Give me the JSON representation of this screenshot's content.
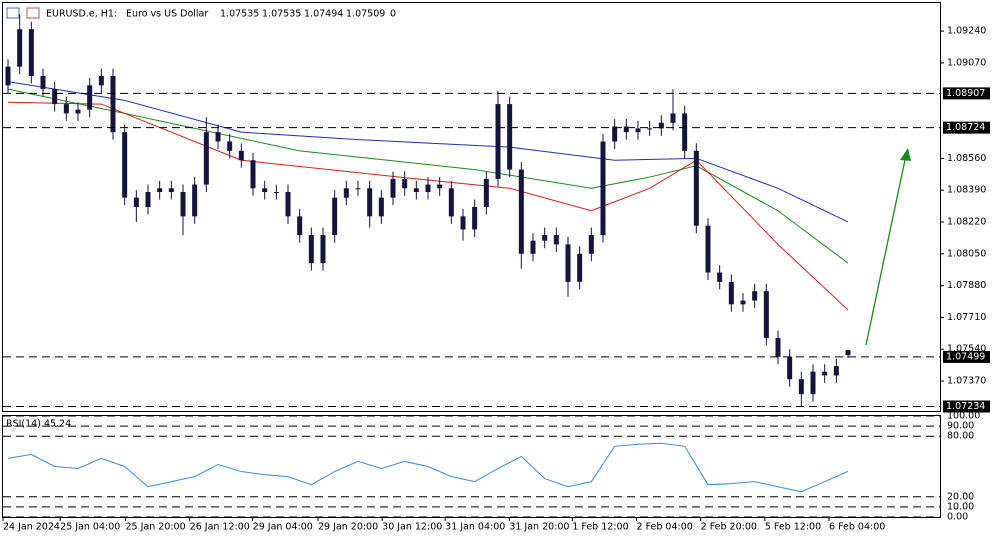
{
  "chart_data": [
    {
      "type": "candlestick",
      "symbol": "EURUSD.e, H1:",
      "description": "Euro vs US Dollar",
      "spread": 0,
      "color": "#14143c",
      "open": [
        1.0895,
        1.0905,
        1.0925,
        1.09,
        1.0893,
        1.0885,
        1.088,
        1.0882,
        1.0895,
        1.09,
        1.087,
        1.0835,
        1.083,
        1.0838,
        1.084,
        1.0838,
        1.0825,
        1.0842,
        1.087,
        1.0865,
        1.086,
        1.0855,
        1.084,
        1.0838,
        1.0838,
        1.0825,
        1.0815,
        1.08,
        1.0815,
        1.0835,
        1.084,
        1.084,
        1.0825,
        1.0835,
        1.0845,
        1.084,
        1.0838,
        1.0842,
        1.084,
        1.0825,
        1.0818,
        1.083,
        1.0845,
        1.0885,
        1.085,
        1.0805,
        1.0812,
        1.0815,
        1.081,
        1.079,
        1.0805,
        1.0815,
        1.0865,
        1.0873,
        1.087,
        1.0872,
        1.0872,
        1.0875,
        1.088,
        1.086,
        1.082,
        1.0795,
        1.079,
        1.0778,
        1.078,
        1.0785,
        1.076,
        1.075,
        1.0738,
        1.073,
        1.0742,
        1.074,
        1.07535
      ],
      "high": [
        1.0909,
        1.0933,
        1.0929,
        1.0904,
        1.0897,
        1.0889,
        1.0886,
        1.0899,
        1.0904,
        1.0904,
        1.0874,
        1.0839,
        1.0842,
        1.0844,
        1.0844,
        1.0842,
        1.0846,
        1.0878,
        1.0874,
        1.0869,
        1.0864,
        1.0859,
        1.0844,
        1.0842,
        1.0842,
        1.0829,
        1.0819,
        1.0819,
        1.0839,
        1.0844,
        1.0844,
        1.0844,
        1.0839,
        1.0849,
        1.0849,
        1.0844,
        1.0846,
        1.0846,
        1.0844,
        1.0829,
        1.0834,
        1.0849,
        1.0892,
        1.0889,
        1.0854,
        1.0816,
        1.0819,
        1.0819,
        1.0814,
        1.0809,
        1.0819,
        1.0869,
        1.0877,
        1.0877,
        1.0876,
        1.0876,
        1.0879,
        1.0893,
        1.0884,
        1.0864,
        1.0824,
        1.0799,
        1.0794,
        1.0784,
        1.0789,
        1.0789,
        1.0764,
        1.0754,
        1.0742,
        1.0746,
        1.0746,
        1.0749,
        1.07535
      ],
      "low": [
        1.0891,
        1.0901,
        1.0896,
        1.0889,
        1.0881,
        1.0876,
        1.0876,
        1.0878,
        1.0891,
        1.0866,
        1.0831,
        1.0822,
        1.0826,
        1.0834,
        1.0834,
        1.0815,
        1.0821,
        1.0838,
        1.0861,
        1.0856,
        1.0851,
        1.0836,
        1.0834,
        1.0834,
        1.0821,
        1.0811,
        1.0796,
        1.0796,
        1.0811,
        1.0831,
        1.0836,
        1.0819,
        1.0821,
        1.0831,
        1.0836,
        1.0834,
        1.0834,
        1.0836,
        1.0821,
        1.0812,
        1.0814,
        1.0826,
        1.0841,
        1.0846,
        1.0797,
        1.0801,
        1.0808,
        1.0806,
        1.0782,
        1.0786,
        1.0801,
        1.0811,
        1.0861,
        1.0866,
        1.0866,
        1.0868,
        1.0868,
        1.0871,
        1.0856,
        1.0816,
        1.0791,
        1.0786,
        1.0774,
        1.0774,
        1.0776,
        1.0756,
        1.0746,
        1.0734,
        1.07234,
        1.0726,
        1.0736,
        1.0736,
        1.07494
      ],
      "close": [
        1.0905,
        1.0925,
        1.09,
        1.0893,
        1.0885,
        1.088,
        1.0882,
        1.0895,
        1.09,
        1.087,
        1.0835,
        1.083,
        1.0838,
        1.084,
        1.0838,
        1.0825,
        1.0842,
        1.087,
        1.0865,
        1.086,
        1.0855,
        1.084,
        1.0838,
        1.0838,
        1.0825,
        1.0815,
        1.08,
        1.0815,
        1.0835,
        1.084,
        1.084,
        1.0825,
        1.0835,
        1.0845,
        1.084,
        1.0838,
        1.0842,
        1.084,
        1.0825,
        1.0818,
        1.083,
        1.0845,
        1.0885,
        1.085,
        1.0805,
        1.0812,
        1.0815,
        1.081,
        1.079,
        1.0805,
        1.0815,
        1.0865,
        1.0873,
        1.087,
        1.0872,
        1.0872,
        1.0875,
        1.088,
        1.086,
        1.082,
        1.0795,
        1.079,
        1.0778,
        1.078,
        1.0785,
        1.076,
        1.075,
        1.0738,
        1.073,
        1.0742,
        1.074,
        1.0745,
        1.07509
      ],
      "series": [
        {
          "color": "#1f2fb4",
          "x": [
            0,
            10,
            20,
            30,
            43,
            52,
            59,
            66,
            72
          ],
          "values": [
            1.0897,
            1.0887,
            1.087,
            1.0866,
            1.0862,
            1.0855,
            1.0856,
            1.084,
            1.0822
          ]
        },
        {
          "color": "#1a8a1a",
          "x": [
            0,
            10,
            25,
            40,
            50,
            55,
            59,
            66,
            72
          ],
          "values": [
            1.0893,
            1.088,
            1.086,
            1.085,
            1.084,
            1.0846,
            1.0852,
            1.0828,
            1.08
          ]
        },
        {
          "color": "#d81e1e",
          "x": [
            0,
            8,
            20,
            35,
            43,
            50,
            55,
            59,
            66,
            72
          ],
          "values": [
            1.0886,
            1.0885,
            1.0855,
            1.0845,
            1.084,
            1.0828,
            1.084,
            1.0855,
            1.081,
            1.0775
          ]
        }
      ],
      "levels": [
        1.08907,
        1.08724,
        1.07499,
        1.07234
      ],
      "ylim": [
        1.0721,
        1.0939
      ],
      "yticks": [
        {
          "value": 1.0924,
          "label": "1.09240"
        },
        {
          "value": 1.0907,
          "label": "1.09070"
        },
        {
          "value": 1.0856,
          "label": "1.08560"
        },
        {
          "value": 1.0839,
          "label": "1.08390"
        },
        {
          "value": 1.0822,
          "label": "1.08220"
        },
        {
          "value": 1.0805,
          "label": "1.08050"
        },
        {
          "value": 1.0788,
          "label": "1.07880"
        },
        {
          "value": 1.0771,
          "label": "1.07710"
        },
        {
          "value": 1.0754,
          "label": "1.07540"
        },
        {
          "value": 1.0737,
          "label": "1.07370"
        }
      ],
      "xticks": [
        {
          "value": 0,
          "label": "24 Jan 2024"
        },
        {
          "value": 4.9,
          "label": "25 Jan 04:00"
        },
        {
          "value": 10.5,
          "label": "25 Jan 20:00"
        },
        {
          "value": 16,
          "label": "26 Jan 12:00"
        },
        {
          "value": 21.4,
          "label": "29 Jan 04:00"
        },
        {
          "value": 27,
          "label": "29 Jan 20:00"
        },
        {
          "value": 32.5,
          "label": "30 Jan 12:00"
        },
        {
          "value": 37.9,
          "label": "31 Jan 04:00"
        },
        {
          "value": 43.4,
          "label": "31 Jan 20:00"
        },
        {
          "value": 48.8,
          "label": "1 Feb 12:00"
        },
        {
          "value": 54.3,
          "label": "2 Feb 04:00"
        },
        {
          "value": 59.8,
          "label": "2 Feb 20:00"
        },
        {
          "value": 65.3,
          "label": "5 Feb 12:00"
        },
        {
          "value": 70.8,
          "label": "6 Feb 04:00"
        }
      ]
    },
    {
      "type": "line",
      "title": "RSI(14) 45.24",
      "color": "#3a8ed4",
      "x": [
        0,
        2,
        4,
        6,
        8,
        10,
        12,
        14,
        16,
        18,
        20,
        22,
        24,
        26,
        28,
        30,
        32,
        34,
        36,
        38,
        40,
        42,
        44,
        46,
        48,
        50,
        52,
        54,
        56,
        58,
        60,
        62,
        64,
        66,
        68,
        70,
        72
      ],
      "values": [
        58,
        62,
        50,
        48,
        58,
        50,
        30,
        35,
        40,
        52,
        45,
        42,
        40,
        32,
        45,
        55,
        48,
        55,
        50,
        40,
        35,
        48,
        60,
        38,
        30,
        35,
        70,
        72,
        73,
        70,
        32,
        33,
        35,
        30,
        25,
        35,
        45.24
      ],
      "ylim": [
        0,
        100
      ],
      "yticks": [
        {
          "value": 100,
          "label": "100.00"
        },
        {
          "value": 90,
          "label": "90.00"
        },
        {
          "value": 80,
          "label": "80.00"
        },
        {
          "value": 20,
          "label": "20.00"
        },
        {
          "value": 10,
          "label": "10.00"
        },
        {
          "value": 0,
          "label": "0.00"
        }
      ]
    }
  ]
}
